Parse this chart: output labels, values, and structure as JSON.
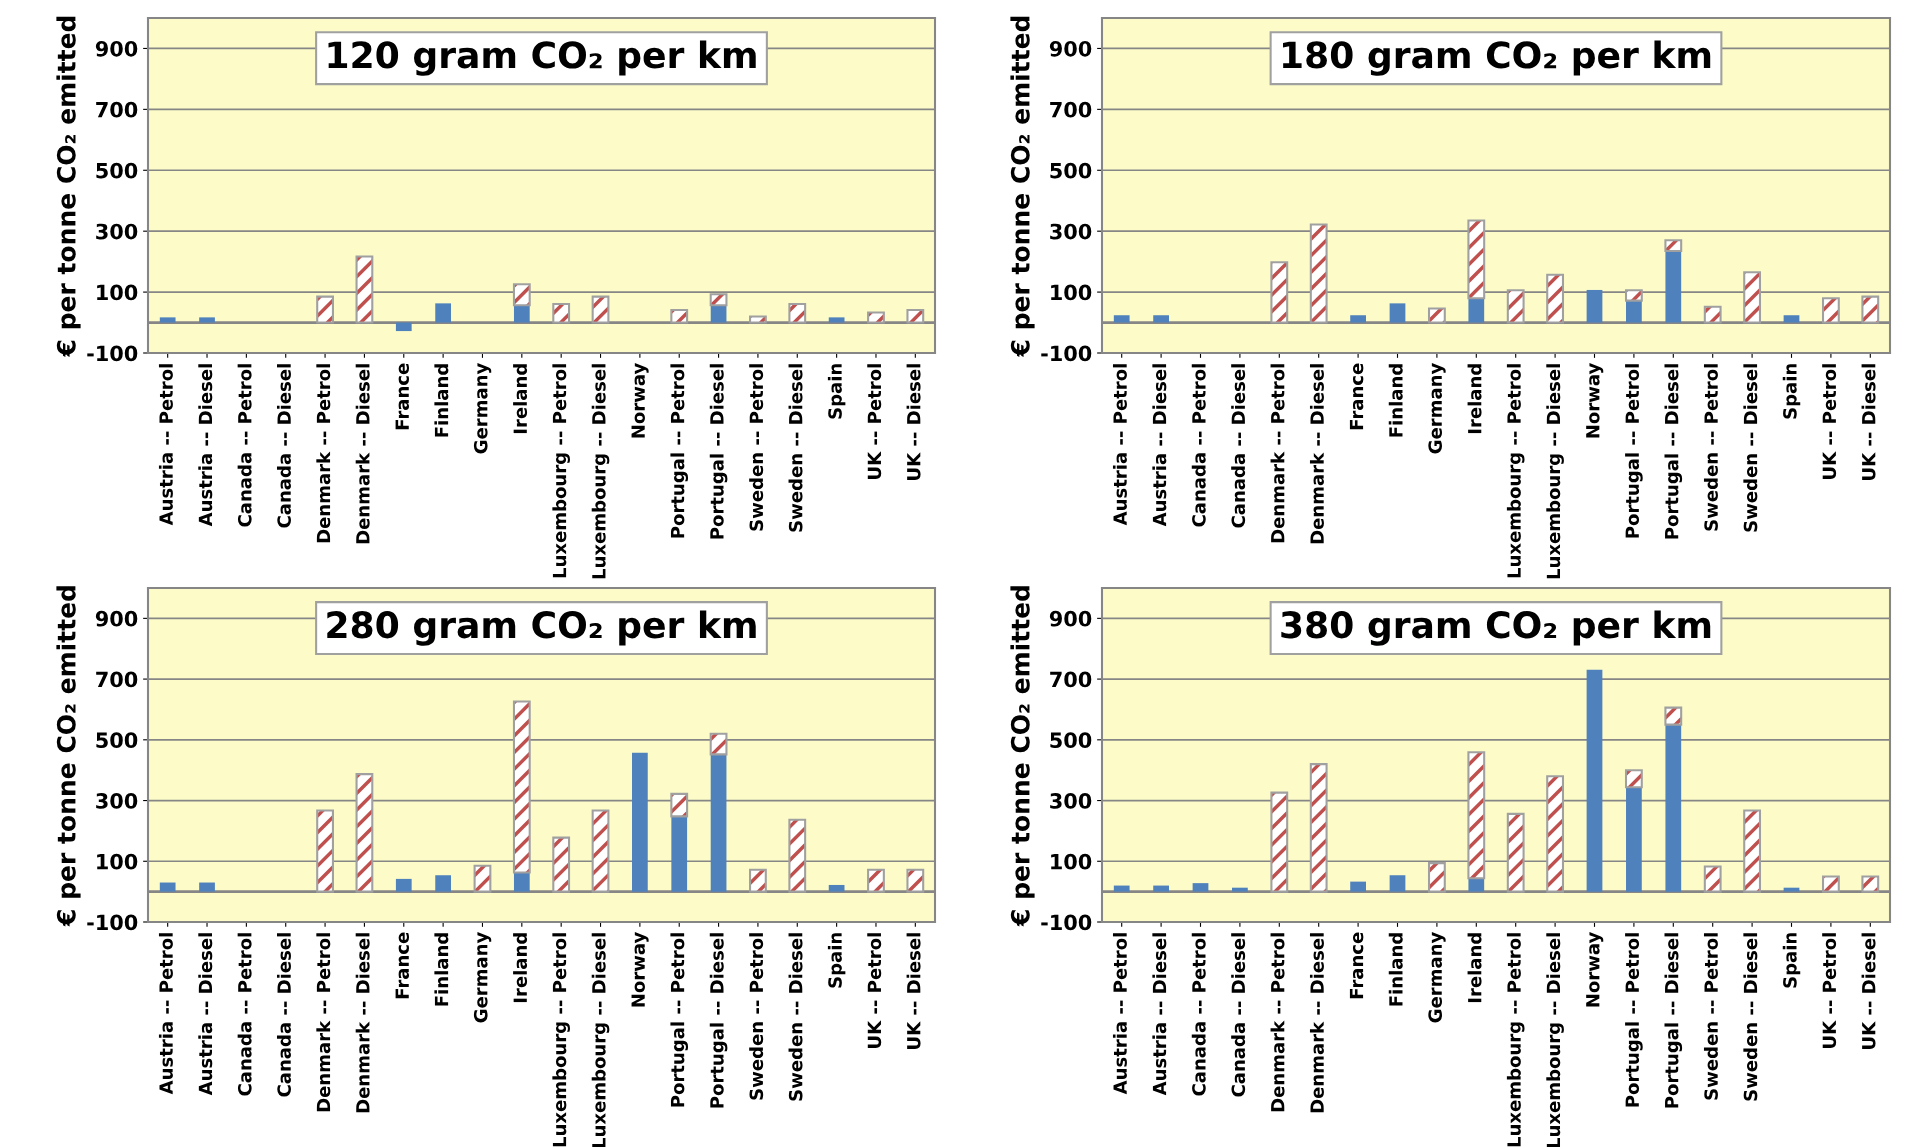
{
  "chart_data": [
    {
      "type": "bar",
      "title": "120 gram CO₂ per km",
      "ylabel": "€ per tonne CO₂ emitted",
      "stacked": true,
      "categories": [
        "Austria -- Petrol",
        "Austria -- Diesel",
        "Canada -- Petrol",
        "Canada -- Diesel",
        "Denmark -- Petrol",
        "Denmark -- Diesel",
        "France",
        "Finland",
        "Germany",
        "Ireland",
        "Luxembourg -- Petrol",
        "Luxembourg -- Diesel",
        "Norway",
        "Portugal -- Petrol",
        "Portugal -- Diesel",
        "Sweden -- Petrol",
        "Sweden -- Diesel",
        "Spain",
        "UK -- Petrol",
        "UK -- Diesel"
      ],
      "series": [
        {
          "color": "#4f81bd",
          "values": [
            17,
            17,
            0,
            0,
            0,
            0,
            -28,
            63,
            0,
            57,
            0,
            0,
            0,
            0,
            57,
            0,
            0,
            17,
            0,
            0
          ]
        },
        {
          "color": "#c0504d",
          "values": [
            0,
            0,
            0,
            0,
            85,
            217,
            0,
            0,
            0,
            69,
            61,
            85,
            0,
            41,
            36,
            20,
            61,
            0,
            33,
            41
          ]
        }
      ],
      "ylim": [
        -100,
        1000
      ],
      "yticks": [
        -100,
        100,
        300,
        500,
        700,
        900
      ],
      "grid": "y",
      "ref_lines": [
        {
          "axis": "y",
          "value": 0,
          "color": "#868686"
        }
      ]
    },
    {
      "type": "bar",
      "title": "180 gram CO₂ per km",
      "ylabel": "€ per tonne CO₂ emitted",
      "stacked": true,
      "categories": [
        "Austria -- Petrol",
        "Austria -- Diesel",
        "Canada -- Petrol",
        "Canada -- Diesel",
        "Denmark -- Petrol",
        "Denmark -- Diesel",
        "France",
        "Finland",
        "Germany",
        "Ireland",
        "Luxembourg -- Petrol",
        "Luxembourg -- Diesel",
        "Norway",
        "Portugal -- Petrol",
        "Portugal -- Diesel",
        "Sweden -- Petrol",
        "Sweden -- Diesel",
        "Spain",
        "UK -- Petrol",
        "UK -- Diesel"
      ],
      "series": [
        {
          "color": "#4f81bd",
          "values": [
            24,
            24,
            0,
            0,
            0,
            0,
            24,
            63,
            0,
            80,
            0,
            0,
            107,
            72,
            235,
            0,
            0,
            24,
            0,
            0
          ]
        },
        {
          "color": "#c0504d",
          "values": [
            0,
            0,
            0,
            0,
            198,
            322,
            0,
            0,
            46,
            255,
            106,
            157,
            0,
            34,
            35,
            52,
            165,
            0,
            80,
            85
          ]
        }
      ],
      "ylim": [
        -100,
        1000
      ],
      "yticks": [
        -100,
        100,
        300,
        500,
        700,
        900
      ],
      "grid": "y",
      "ref_lines": [
        {
          "axis": "y",
          "value": 0,
          "color": "#868686"
        }
      ]
    },
    {
      "type": "bar",
      "title": "280 gram CO₂ per km",
      "ylabel": "€ per tonne CO₂ emitted",
      "stacked": true,
      "categories": [
        "Austria -- Petrol",
        "Austria -- Diesel",
        "Canada -- Petrol",
        "Canada -- Diesel",
        "Denmark -- Petrol",
        "Denmark -- Diesel",
        "France",
        "Finland",
        "Germany",
        "Ireland",
        "Luxembourg -- Petrol",
        "Luxembourg -- Diesel",
        "Norway",
        "Portugal -- Petrol",
        "Portugal -- Diesel",
        "Sweden -- Petrol",
        "Sweden -- Diesel",
        "Spain",
        "UK -- Petrol",
        "UK -- Diesel"
      ],
      "series": [
        {
          "color": "#4f81bd",
          "values": [
            30,
            30,
            0,
            0,
            0,
            0,
            42,
            54,
            0,
            63,
            0,
            0,
            457,
            248,
            452,
            0,
            0,
            22,
            0,
            0
          ]
        },
        {
          "color": "#c0504d",
          "values": [
            0,
            0,
            0,
            0,
            267,
            387,
            0,
            0,
            85,
            563,
            178,
            267,
            0,
            74,
            68,
            72,
            237,
            0,
            72,
            72
          ]
        }
      ],
      "ylim": [
        -100,
        1000
      ],
      "yticks": [
        -100,
        100,
        300,
        500,
        700,
        900
      ],
      "grid": "y",
      "ref_lines": [
        {
          "axis": "y",
          "value": 0,
          "color": "#868686"
        }
      ]
    },
    {
      "type": "bar",
      "title": "380 gram CO₂ per km",
      "ylabel": "€ per tonne CO₂ emitted",
      "stacked": true,
      "categories": [
        "Austria -- Petrol",
        "Austria -- Diesel",
        "Canada -- Petrol",
        "Canada -- Diesel",
        "Denmark -- Petrol",
        "Denmark -- Diesel",
        "France",
        "Finland",
        "Germany",
        "Ireland",
        "Luxembourg -- Petrol",
        "Luxembourg -- Diesel",
        "Norway",
        "Portugal -- Petrol",
        "Portugal -- Diesel",
        "Sweden -- Petrol",
        "Sweden -- Diesel",
        "Spain",
        "UK -- Petrol",
        "UK -- Diesel"
      ],
      "series": [
        {
          "color": "#4f81bd",
          "values": [
            20,
            20,
            28,
            13,
            0,
            0,
            33,
            54,
            0,
            44,
            0,
            0,
            731,
            344,
            550,
            0,
            0,
            13,
            0,
            0
          ]
        },
        {
          "color": "#c0504d",
          "values": [
            0,
            0,
            0,
            0,
            326,
            420,
            0,
            0,
            94,
            415,
            256,
            380,
            0,
            56,
            56,
            83,
            267,
            0,
            50,
            50
          ]
        }
      ],
      "ylim": [
        -100,
        1000
      ],
      "yticks": [
        -100,
        100,
        300,
        500,
        700,
        900
      ],
      "grid": "y",
      "ref_lines": [
        {
          "axis": "y",
          "value": 0,
          "color": "#868686"
        }
      ]
    }
  ]
}
